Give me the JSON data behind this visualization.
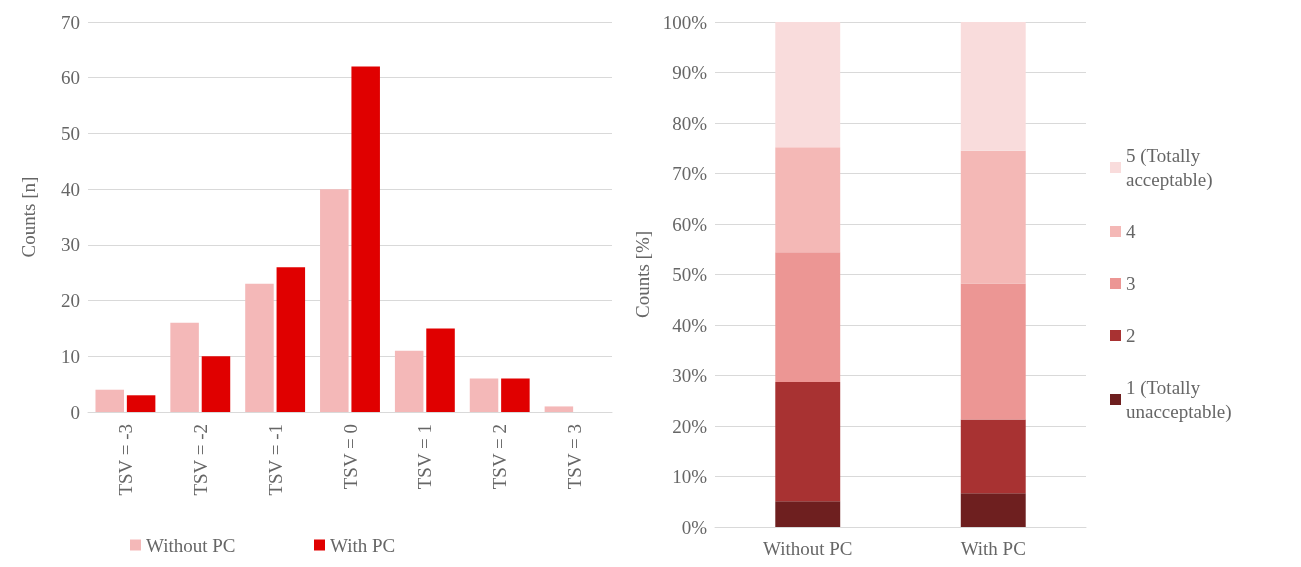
{
  "chart_data": [
    {
      "type": "bar",
      "ylabel": "Counts [n]",
      "categories": [
        "TSV = -3",
        "TSV = -2",
        "TSV = -1",
        "TSV = 0",
        "TSV = 1",
        "TSV = 2",
        "TSV = 3"
      ],
      "series": [
        {
          "name": "Without PC",
          "color": "#f4b8b8",
          "values": [
            4,
            16,
            23,
            40,
            11,
            6,
            1
          ]
        },
        {
          "name": "With PC",
          "color": "#e00000",
          "values": [
            3,
            10,
            26,
            62,
            15,
            6,
            0
          ]
        }
      ],
      "ylim": [
        0,
        70
      ],
      "yticks": [
        0,
        10,
        20,
        30,
        40,
        50,
        60,
        70
      ],
      "grid": "y",
      "legend": "bottom"
    },
    {
      "type": "bar",
      "ylabel": "Counts [%]",
      "categories": [
        "Without PC",
        "With PC"
      ],
      "stacked": true,
      "series": [
        {
          "name": "1 (Totally unacceptable)",
          "color": "#6e1f1f",
          "values": [
            5.1,
            6.7
          ]
        },
        {
          "name": "2",
          "color": "#a83232",
          "values": [
            23.6,
            14.6
          ]
        },
        {
          "name": "3",
          "color": "#ec9694",
          "values": [
            25.7,
            26.9
          ]
        },
        {
          "name": "4",
          "color": "#f4b8b6",
          "values": [
            20.8,
            26.3
          ]
        },
        {
          "name": "5 (Totally acceptable)",
          "color": "#f9dcdc",
          "values": [
            24.8,
            25.5
          ]
        }
      ],
      "ylim": [
        0,
        100
      ],
      "yticks": [
        {
          "value": 0,
          "label": "0%"
        },
        {
          "value": 10,
          "label": "10%"
        },
        {
          "value": 20,
          "label": "20%"
        },
        {
          "value": 30,
          "label": "30%"
        },
        {
          "value": 40,
          "label": "40%"
        },
        {
          "value": 50,
          "label": "50%"
        },
        {
          "value": 60,
          "label": "60%"
        },
        {
          "value": 70,
          "label": "70%"
        },
        {
          "value": 80,
          "label": "80%"
        },
        {
          "value": 90,
          "label": "90%"
        },
        {
          "value": 100,
          "label": "100%"
        }
      ],
      "grid": "y",
      "legend": "right"
    }
  ]
}
